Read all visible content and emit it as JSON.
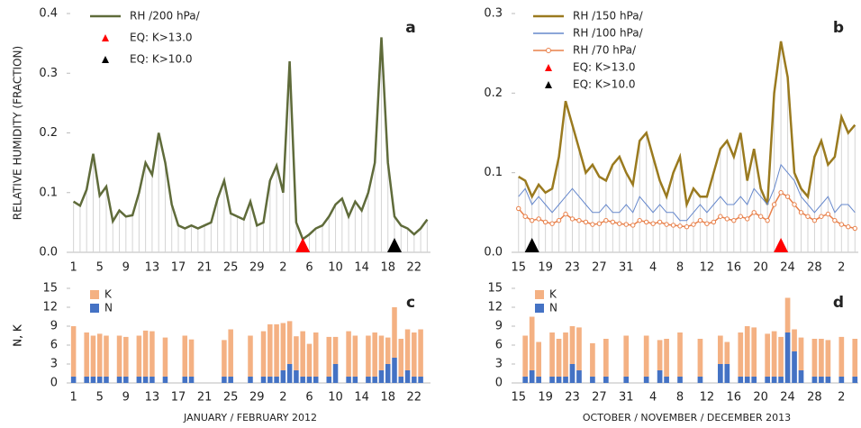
{
  "chart_data": [
    {
      "type": "line",
      "panel": "a",
      "y_label": "RELATIVE HUMIDITY (FRACTION)",
      "stems": true,
      "categories": [
        "1",
        null,
        null,
        null,
        "5",
        null,
        null,
        null,
        "9",
        null,
        null,
        null,
        "13",
        null,
        null,
        null,
        "17",
        null,
        null,
        null,
        "21",
        null,
        null,
        null,
        "25",
        null,
        null,
        null,
        "29",
        null,
        null,
        null,
        "2",
        null,
        null,
        null,
        "6",
        null,
        null,
        null,
        "10",
        null,
        null,
        null,
        "14",
        null,
        null,
        null,
        "18",
        null,
        null,
        null,
        "22",
        null,
        null
      ],
      "ylim": [
        0,
        0.4
      ],
      "yticks": [
        {
          "value": 0,
          "label": "0.0"
        },
        0.1,
        0.2,
        0.3,
        0.4
      ],
      "series": [
        {
          "name": "RH /200 hPa/",
          "color": "#5f6b3a",
          "style": "line",
          "values": [
            0.085,
            0.078,
            0.105,
            0.165,
            0.095,
            0.11,
            0.052,
            0.07,
            0.06,
            0.062,
            0.1,
            0.15,
            0.13,
            0.2,
            0.15,
            0.08,
            0.045,
            0.04,
            0.045,
            0.04,
            0.045,
            0.05,
            0.09,
            0.12,
            0.065,
            0.06,
            0.055,
            0.085,
            0.045,
            0.05,
            0.12,
            0.145,
            0.1,
            0.32,
            0.05,
            0.022,
            0.03,
            0.04,
            0.045,
            0.06,
            0.08,
            0.09,
            0.06,
            0.085,
            0.07,
            0.1,
            0.15,
            0.36,
            0.15,
            0.06,
            0.045,
            0.04,
            0.03,
            0.04,
            0.055
          ]
        },
        {
          "name": "EQ: K>13.0",
          "color": "#ff0000",
          "style": "triangle",
          "values": [
            null,
            null,
            null,
            null,
            null,
            null,
            null,
            null,
            null,
            null,
            null,
            null,
            null,
            null,
            null,
            null,
            null,
            null,
            null,
            null,
            null,
            null,
            null,
            null,
            null,
            null,
            null,
            null,
            null,
            null,
            null,
            null,
            null,
            null,
            null,
            0,
            null,
            null,
            null,
            null,
            null,
            null,
            null,
            null,
            null,
            null,
            null,
            null,
            null,
            null,
            null,
            null,
            null,
            null,
            null
          ]
        },
        {
          "name": "EQ: K>10.0",
          "color": "#000000",
          "style": "triangle",
          "values": [
            null,
            null,
            null,
            null,
            null,
            null,
            null,
            null,
            null,
            null,
            null,
            null,
            null,
            null,
            null,
            null,
            null,
            null,
            null,
            null,
            null,
            null,
            null,
            null,
            null,
            null,
            null,
            null,
            null,
            null,
            null,
            null,
            null,
            null,
            null,
            null,
            null,
            null,
            null,
            null,
            null,
            null,
            null,
            null,
            null,
            null,
            null,
            null,
            null,
            0,
            null,
            null,
            null,
            null,
            null
          ]
        }
      ]
    },
    {
      "type": "line",
      "panel": "b",
      "stems": true,
      "categories": [
        "15",
        null,
        null,
        null,
        "19",
        null,
        null,
        null,
        "23",
        null,
        null,
        null,
        "27",
        null,
        null,
        null,
        "31",
        null,
        null,
        null,
        "4",
        null,
        null,
        null,
        "8",
        null,
        null,
        null,
        "12",
        null,
        null,
        null,
        "16",
        null,
        null,
        null,
        "20",
        null,
        null,
        null,
        "24",
        null,
        null,
        null,
        "28",
        null,
        null,
        null,
        "2",
        null,
        null
      ],
      "ylim": [
        0,
        0.3
      ],
      "yticks": [
        {
          "value": 0,
          "label": "0.0"
        },
        0.1,
        0.2,
        0.3
      ],
      "series": [
        {
          "name": "RH /150 hPa/",
          "color": "#9a7a1f",
          "style": "line",
          "values": [
            0.095,
            0.09,
            0.07,
            0.085,
            0.075,
            0.08,
            0.12,
            0.19,
            0.16,
            0.13,
            0.1,
            0.11,
            0.095,
            0.09,
            0.11,
            0.12,
            0.1,
            0.085,
            0.14,
            0.15,
            0.12,
            0.09,
            0.07,
            0.1,
            0.12,
            0.06,
            0.08,
            0.07,
            0.07,
            0.1,
            0.13,
            0.14,
            0.12,
            0.15,
            0.09,
            0.13,
            0.08,
            0.06,
            0.2,
            0.265,
            0.22,
            0.1,
            0.08,
            0.07,
            0.12,
            0.14,
            0.11,
            0.12,
            0.17,
            0.15,
            0.16
          ]
        },
        {
          "name": "RH /100 hPa/",
          "color": "#6688cc",
          "style": "thin",
          "values": [
            0.07,
            0.08,
            0.06,
            0.07,
            0.06,
            0.05,
            0.06,
            0.07,
            0.08,
            0.07,
            0.06,
            0.05,
            0.05,
            0.06,
            0.05,
            0.05,
            0.06,
            0.05,
            0.07,
            0.06,
            0.05,
            0.06,
            0.05,
            0.05,
            0.04,
            0.04,
            0.05,
            0.06,
            0.05,
            0.06,
            0.07,
            0.06,
            0.06,
            0.07,
            0.06,
            0.08,
            0.07,
            0.06,
            0.08,
            0.11,
            0.1,
            0.09,
            0.07,
            0.06,
            0.05,
            0.06,
            0.07,
            0.05,
            0.06,
            0.06,
            0.05
          ]
        },
        {
          "name": "RH /70 hPa/",
          "color": "#e8804a",
          "style": "circle",
          "values": [
            0.055,
            0.045,
            0.04,
            0.042,
            0.038,
            0.036,
            0.04,
            0.048,
            0.042,
            0.04,
            0.038,
            0.035,
            0.036,
            0.04,
            0.038,
            0.036,
            0.035,
            0.034,
            0.04,
            0.038,
            0.036,
            0.038,
            0.035,
            0.034,
            0.033,
            0.032,
            0.035,
            0.04,
            0.036,
            0.038,
            0.045,
            0.042,
            0.04,
            0.045,
            0.042,
            0.05,
            0.045,
            0.04,
            0.06,
            0.075,
            0.07,
            0.06,
            0.05,
            0.045,
            0.04,
            0.045,
            0.048,
            0.04,
            0.035,
            0.032,
            0.03
          ]
        },
        {
          "name": "EQ: K>13.0",
          "color": "#ff0000",
          "style": "triangle",
          "values": [
            null,
            null,
            null,
            null,
            null,
            null,
            null,
            null,
            null,
            null,
            null,
            null,
            null,
            null,
            null,
            null,
            null,
            null,
            null,
            null,
            null,
            null,
            null,
            null,
            null,
            null,
            null,
            null,
            null,
            null,
            null,
            null,
            null,
            null,
            null,
            null,
            null,
            null,
            null,
            0,
            null,
            null,
            null,
            null,
            null,
            null,
            null,
            null,
            null,
            null,
            null
          ]
        },
        {
          "name": "EQ: K>10.0",
          "color": "#000000",
          "style": "triangle",
          "values": [
            null,
            null,
            0,
            null,
            null,
            null,
            null,
            null,
            null,
            null,
            null,
            null,
            null,
            null,
            null,
            null,
            null,
            null,
            null,
            null,
            null,
            null,
            null,
            null,
            null,
            null,
            null,
            null,
            null,
            null,
            null,
            null,
            null,
            null,
            null,
            null,
            null,
            null,
            null,
            null,
            null,
            null,
            null,
            null,
            null,
            null,
            null,
            null,
            null,
            null,
            null
          ]
        }
      ]
    },
    {
      "type": "bar",
      "panel": "c",
      "stacked": true,
      "y_label": "N, K",
      "x_label": "JANUARY / FEBRUARY 2012",
      "categories": [
        "1",
        null,
        null,
        null,
        "5",
        null,
        null,
        null,
        "9",
        null,
        null,
        null,
        "13",
        null,
        null,
        null,
        "17",
        null,
        null,
        null,
        "21",
        null,
        null,
        null,
        "25",
        null,
        null,
        null,
        "29",
        null,
        null,
        null,
        "2",
        null,
        null,
        null,
        "6",
        null,
        null,
        null,
        "10",
        null,
        null,
        null,
        "14",
        null,
        null,
        null,
        "18",
        null,
        null,
        null,
        "22",
        null,
        null
      ],
      "ylim": [
        0,
        15
      ],
      "yticks": [
        0,
        3,
        6,
        9,
        12,
        15
      ],
      "legend_order": [
        1,
        0
      ],
      "series": [
        {
          "name": "N",
          "color": "#4472c4",
          "values": [
            1,
            0,
            1,
            1,
            1,
            1,
            0,
            1,
            1,
            0,
            1,
            1,
            1,
            0,
            1,
            0,
            0,
            1,
            1,
            0,
            0,
            0,
            0,
            1,
            1,
            0,
            0,
            1,
            0,
            1,
            1,
            1,
            2,
            3,
            2,
            1,
            1,
            1,
            0,
            1,
            3,
            0,
            1,
            1,
            0,
            1,
            1,
            2,
            3,
            4,
            1,
            2,
            1,
            1,
            0
          ]
        },
        {
          "name": "K",
          "color": "#f4b183",
          "values": [
            8,
            0,
            7,
            6.5,
            6.8,
            6.5,
            0,
            6.5,
            6.3,
            0,
            6.5,
            7.3,
            7.2,
            0,
            6.2,
            0,
            0,
            6.5,
            5.9,
            0,
            0,
            0,
            0,
            5.8,
            7.5,
            0,
            0,
            6.5,
            0,
            7.2,
            8.3,
            8.3,
            7.5,
            6.8,
            5.4,
            7.2,
            5.2,
            7,
            0,
            6.3,
            4.3,
            0,
            7.2,
            6.5,
            0,
            6.5,
            7,
            5.5,
            4.2,
            8,
            6,
            6.5,
            7,
            7.5,
            0
          ]
        }
      ]
    },
    {
      "type": "bar",
      "panel": "d",
      "stacked": true,
      "y_label": "N, K",
      "x_label": "OCTOBER / NOVEMBER / DECEMBER 2013",
      "categories": [
        "15",
        null,
        null,
        null,
        "19",
        null,
        null,
        null,
        "23",
        null,
        null,
        null,
        "27",
        null,
        null,
        null,
        "31",
        null,
        null,
        null,
        "4",
        null,
        null,
        null,
        "8",
        null,
        null,
        null,
        "12",
        null,
        null,
        null,
        "16",
        null,
        null,
        null,
        "20",
        null,
        null,
        null,
        "24",
        null,
        null,
        null,
        "28",
        null,
        null,
        null,
        "2",
        null,
        null
      ],
      "ylim": [
        0,
        15
      ],
      "yticks": [
        0,
        3,
        6,
        9,
        12,
        15
      ],
      "legend_order": [
        1,
        0
      ],
      "series": [
        {
          "name": "N",
          "color": "#4472c4",
          "values": [
            0,
            1,
            2,
            1,
            0,
            1,
            1,
            1,
            3,
            2,
            0,
            1,
            0,
            1,
            0,
            0,
            1,
            0,
            0,
            1,
            0,
            2,
            1,
            0,
            1,
            0,
            0,
            1,
            0,
            0,
            3,
            3,
            0,
            1,
            1,
            1,
            0,
            1,
            1,
            1,
            8,
            5,
            2,
            0,
            1,
            1,
            1,
            0,
            1,
            0,
            1
          ]
        },
        {
          "name": "K",
          "color": "#f4b183",
          "values": [
            0,
            6.5,
            8.5,
            5.5,
            0,
            7,
            6,
            7,
            6,
            6.8,
            0,
            5.3,
            0,
            6,
            0,
            0,
            6.5,
            0,
            0,
            6.5,
            0,
            4.8,
            6,
            0,
            7,
            0,
            0,
            6,
            0,
            0,
            4.5,
            3.5,
            0,
            7,
            8,
            7.8,
            0,
            6.8,
            7.2,
            6.3,
            5.5,
            3.5,
            5.2,
            0,
            6,
            6,
            5.8,
            0,
            6.3,
            0,
            6
          ]
        }
      ]
    }
  ]
}
